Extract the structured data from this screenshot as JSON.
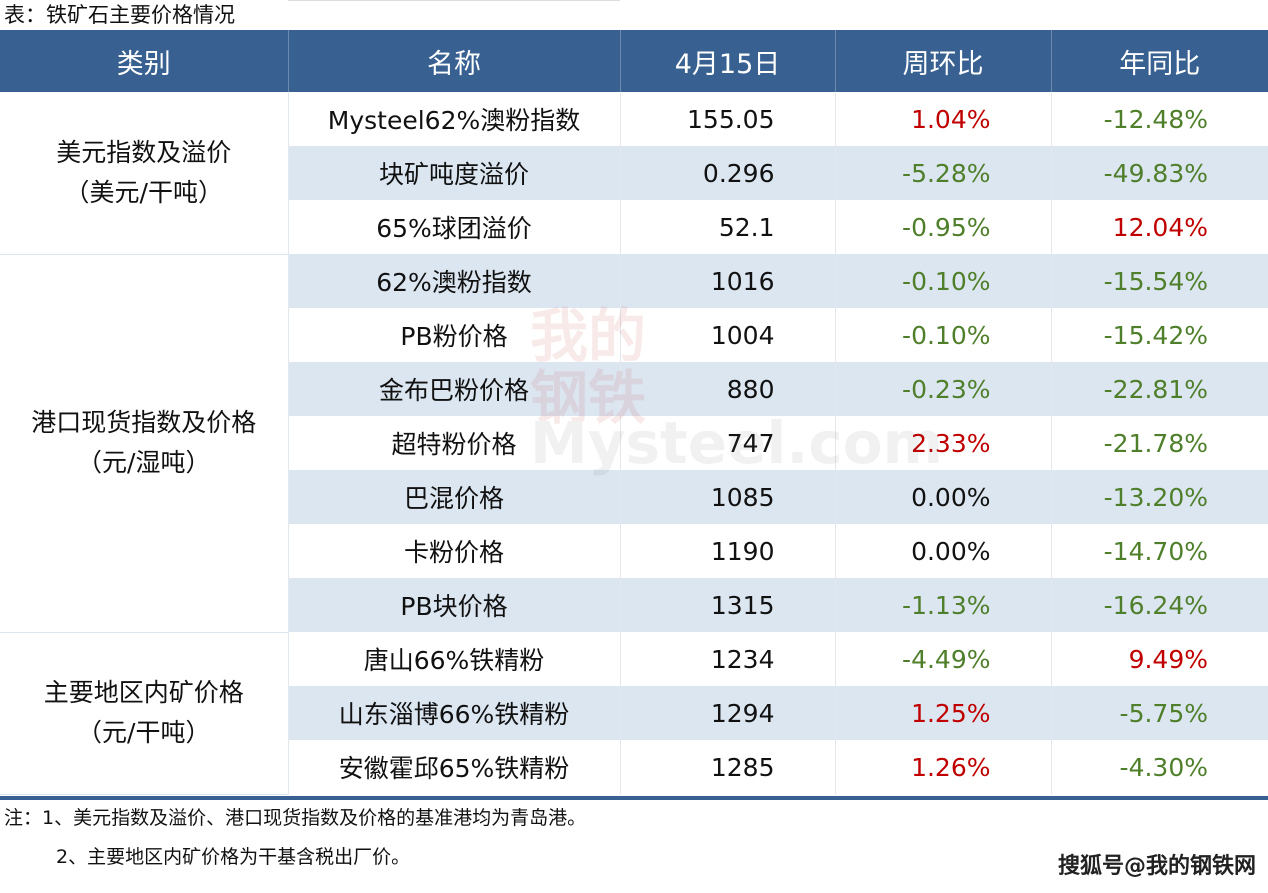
{
  "title": "表：铁矿石主要价格情况",
  "headers": [
    "类别",
    "名称",
    "4月15日",
    "周环比",
    "年同比"
  ],
  "groups": [
    {
      "category": [
        "美元指数及溢价",
        "（美元/干吨）"
      ],
      "rows": [
        {
          "name": "Mysteel62%澳粉指数",
          "value": "155.05",
          "wow": "1.04%",
          "wow_color": "red",
          "yoy": "-12.48%",
          "yoy_color": "green"
        },
        {
          "name": "块矿吨度溢价",
          "value": "0.296",
          "wow": "-5.28%",
          "wow_color": "green",
          "yoy": "-49.83%",
          "yoy_color": "green"
        },
        {
          "name": "65%球团溢价",
          "value": "52.1",
          "wow": "-0.95%",
          "wow_color": "green",
          "yoy": "12.04%",
          "yoy_color": "red"
        }
      ]
    },
    {
      "category": [
        "港口现货指数及价格",
        "（元/湿吨）"
      ],
      "rows": [
        {
          "name": "62%澳粉指数",
          "value": "1016",
          "wow": "-0.10%",
          "wow_color": "green",
          "yoy": "-15.54%",
          "yoy_color": "green"
        },
        {
          "name": "PB粉价格",
          "value": "1004",
          "wow": "-0.10%",
          "wow_color": "green",
          "yoy": "-15.42%",
          "yoy_color": "green"
        },
        {
          "name": "金布巴粉价格",
          "value": "880",
          "wow": "-0.23%",
          "wow_color": "green",
          "yoy": "-22.81%",
          "yoy_color": "green"
        },
        {
          "name": "超特粉价格",
          "value": "747",
          "wow": "2.33%",
          "wow_color": "red",
          "yoy": "-21.78%",
          "yoy_color": "green"
        },
        {
          "name": "巴混价格",
          "value": "1085",
          "wow": "0.00%",
          "wow_color": "black",
          "yoy": "-13.20%",
          "yoy_color": "green"
        },
        {
          "name": "卡粉价格",
          "value": "1190",
          "wow": "0.00%",
          "wow_color": "black",
          "yoy": "-14.70%",
          "yoy_color": "green"
        },
        {
          "name": "PB块价格",
          "value": "1315",
          "wow": "-1.13%",
          "wow_color": "green",
          "yoy": "-16.24%",
          "yoy_color": "green"
        }
      ]
    },
    {
      "category": [
        "主要地区内矿价格",
        "（元/干吨）"
      ],
      "rows": [
        {
          "name": "唐山66%铁精粉",
          "value": "1234",
          "wow": "-4.49%",
          "wow_color": "green",
          "yoy": "9.49%",
          "yoy_color": "red"
        },
        {
          "name": "山东淄博66%铁精粉",
          "value": "1294",
          "wow": "1.25%",
          "wow_color": "red",
          "yoy": "-5.75%",
          "yoy_color": "green"
        },
        {
          "name": "安徽霍邱65%铁精粉",
          "value": "1285",
          "wow": "1.26%",
          "wow_color": "red",
          "yoy": "-4.30%",
          "yoy_color": "green"
        }
      ]
    }
  ],
  "notes": [
    "注：1、美元指数及溢价、港口现货指数及价格的基准港均为青岛港。",
    "2、主要地区内矿价格为干基含税出厂价。"
  ],
  "watermark": {
    "cn": "我的钢铁",
    "en": "Mysteel.com"
  },
  "source": "搜狐号@我的钢铁网",
  "colors": {
    "header": "#386192",
    "alt_row": "#dce6f1",
    "up": "#c00000",
    "down": "#4f7f2a"
  }
}
